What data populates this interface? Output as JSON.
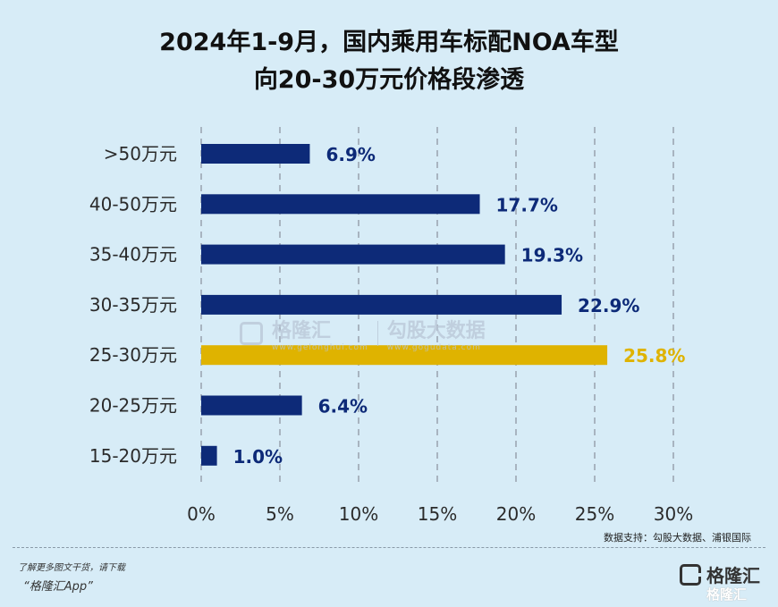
{
  "chart_data": {
    "type": "bar",
    "orientation": "horizontal",
    "title_line1": "2024年1-9月，国内乘用车标配NOA车型",
    "title_line2": "向20-30万元价格段渗透",
    "categories": [
      ">50万元",
      "40-50万元",
      "35-40万元",
      "30-35万元",
      "25-30万元",
      "20-25万元",
      "15-20万元"
    ],
    "values": [
      6.9,
      17.7,
      19.3,
      22.9,
      25.8,
      6.4,
      1.0
    ],
    "value_labels": [
      "6.9%",
      "17.7%",
      "19.3%",
      "22.9%",
      "25.8%",
      "6.4%",
      "1.0%"
    ],
    "highlight_index": 4,
    "xlim": [
      0,
      30
    ],
    "xticks": [
      0,
      5,
      10,
      15,
      20,
      25,
      30
    ],
    "xtick_labels": [
      "0%",
      "5%",
      "10%",
      "15%",
      "20%",
      "25%",
      "30%"
    ],
    "grid": "vertical dashed",
    "colors": {
      "bar": "#0d2a78",
      "highlight": "#dfb300",
      "label": "#0d2a78",
      "highlight_label": "#dfb300",
      "grid": "#a8b4c0"
    }
  },
  "watermark": {
    "brand": "格隆汇",
    "brand_sub": "www.gelonghui.com",
    "partner": "勾股大数据",
    "partner_sub": "www.gogudata.com"
  },
  "source": "数据支持：勾股大数据、浦银国际",
  "footer": {
    "line1": "了解更多图文干货，请下载",
    "line2": "“格隆汇App”",
    "logo_text": "格隆汇",
    "logo_watermark": "格隆汇"
  }
}
